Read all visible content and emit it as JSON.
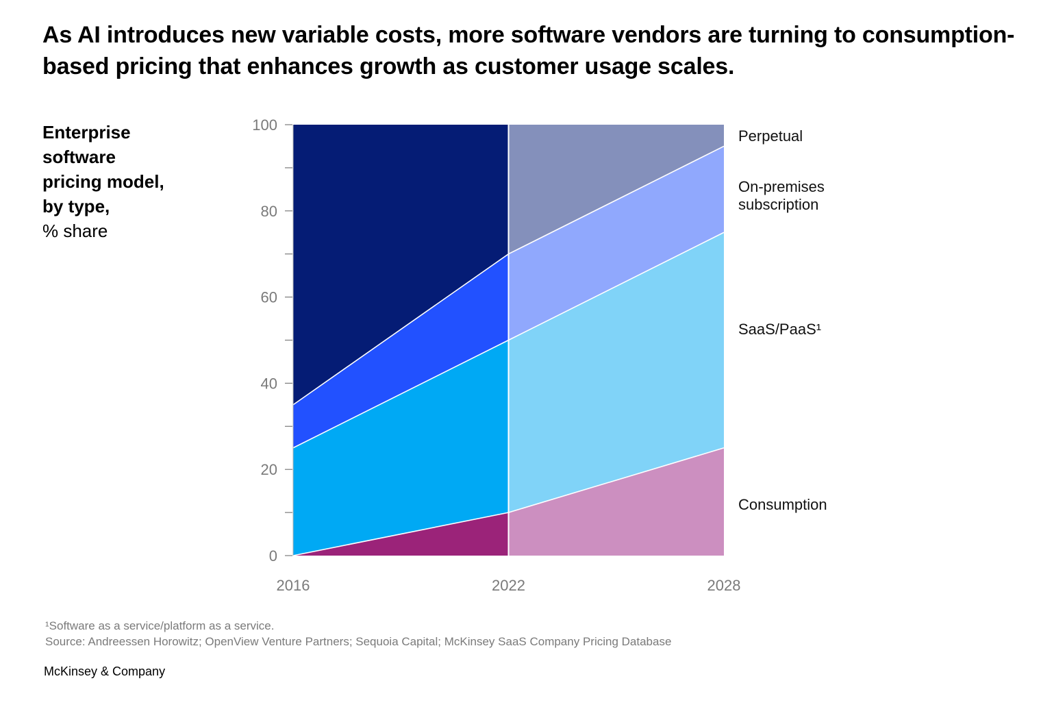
{
  "title": "As AI introduces new variable costs, more software vendors are turning to consumption-based pricing that enhances growth as customer usage scales.",
  "subtitle": {
    "bold_lines": [
      "Enterprise",
      "software",
      "pricing model,",
      "by type,"
    ],
    "unit": "% share"
  },
  "chart_data": {
    "type": "area",
    "stacked": true,
    "title": "Enterprise software pricing model, by type, % share",
    "xlabel": "",
    "ylabel": "% share",
    "x": [
      "2016",
      "2022",
      "2028"
    ],
    "ylim": [
      0,
      100
    ],
    "yticks": [
      0,
      20,
      40,
      60,
      80,
      100
    ],
    "yminor_ticks": [
      10,
      30,
      50,
      70,
      90
    ],
    "note": "2016–2022 shown as historical (darker shades); 2022–2028 shown as projection (lighter shades)",
    "series": [
      {
        "name": "Consumption",
        "values": [
          0,
          10,
          25
        ],
        "color_hist": "#9b2379",
        "color_proj": "#cc8fc0"
      },
      {
        "name": "SaaS/PaaS¹",
        "values": [
          25,
          40,
          50
        ],
        "color_hist": "#00a9f4",
        "color_proj": "#80d3f8"
      },
      {
        "name": "On-premises subscription",
        "values": [
          10,
          20,
          20
        ],
        "color_hist": "#2251ff",
        "color_proj": "#90a8fd"
      },
      {
        "name": "Perpetual",
        "values": [
          65,
          30,
          5
        ],
        "color_hist": "#051c75",
        "color_proj": "#8490bb"
      }
    ],
    "legend": "right, inline labels",
    "series_labels": [
      {
        "series": "Perpetual",
        "lines": [
          "Perpetual"
        ]
      },
      {
        "series": "On-premises subscription",
        "lines": [
          "On-premises",
          "subscription"
        ]
      },
      {
        "series": "SaaS/PaaS¹",
        "lines": [
          "SaaS/PaaS¹"
        ]
      },
      {
        "series": "Consumption",
        "lines": [
          "Consumption"
        ]
      }
    ],
    "grid": false
  },
  "footnotes": [
    "¹Software as a service/platform as a service.",
    "Source: Andreessen Horowitz; OpenView Venture Partners; Sequoia Capital; McKinsey SaaS Company Pricing Database"
  ],
  "brand": "McKinsey & Company"
}
